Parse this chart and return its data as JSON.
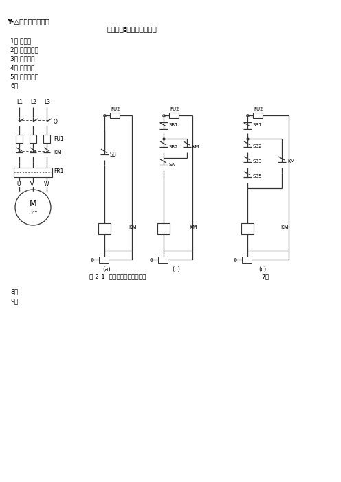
{
  "title_left": "Y-△降压启动线路图",
  "title_center": "第一部分:电气控制图基础",
  "items": [
    "1、 按鈕：",
    "2、 行程开关：",
    "3、 接触器：",
    "4、 继电器：",
    "5、 热继电器：",
    "6、"
  ],
  "caption": "图 2-1  电动机连续运行控制图",
  "page_num": "7、",
  "items_bottom": [
    "8、",
    "9、"
  ],
  "bg_color": "#ffffff",
  "text_color": "#000000",
  "diagram_color": "#333333"
}
